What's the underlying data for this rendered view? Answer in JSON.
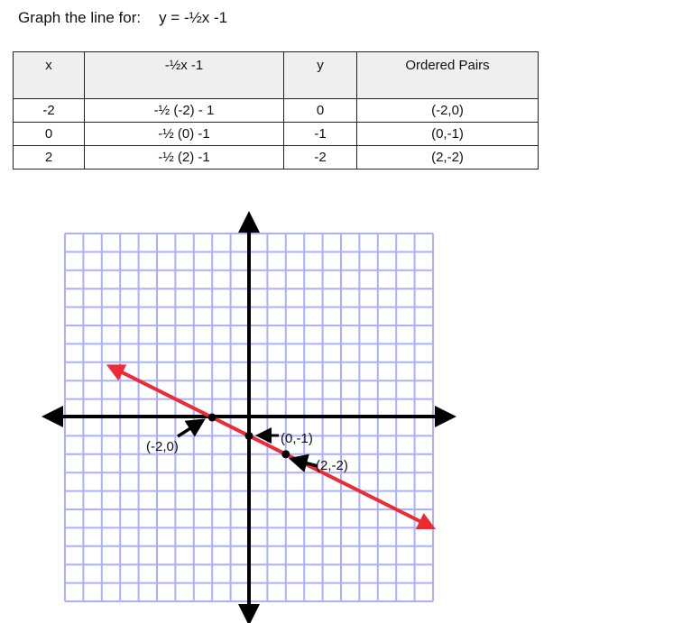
{
  "title": {
    "prefix": "Graph the line for:",
    "equation": "y = -½x -1"
  },
  "table": {
    "headers": [
      "x",
      "-½x -1",
      "y",
      "Ordered Pairs"
    ],
    "rows": [
      [
        "-2",
        "-½ (-2)  - 1",
        "0",
        "(-2,0)"
      ],
      [
        "0",
        "-½ (0) -1",
        "-1",
        "(0,-1)"
      ],
      [
        "2",
        "-½ (2) -1",
        "-2",
        "(2,-2)"
      ]
    ]
  },
  "graph": {
    "grid_color": "#aab0ff",
    "line_color": "#ee2a33",
    "grid_range": [
      -10,
      10
    ],
    "slope": -0.5,
    "intercept": -1,
    "points": [
      {
        "label": "(-2,0)",
        "x": -2,
        "y": 0
      },
      {
        "label": "(0,-1)",
        "x": 0,
        "y": -1
      },
      {
        "label": "(2,-2)",
        "x": 2,
        "y": -2
      }
    ]
  }
}
